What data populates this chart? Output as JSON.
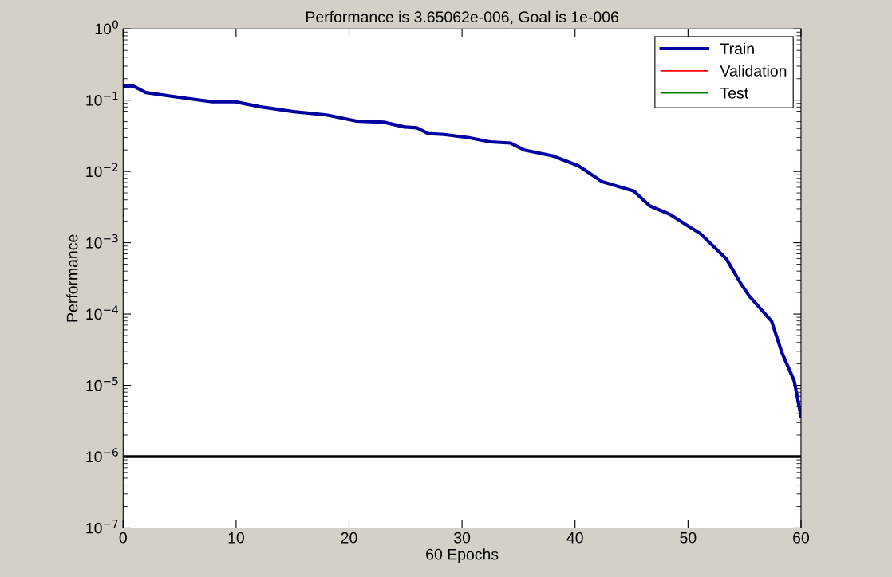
{
  "chart_data": {
    "type": "line",
    "title": "Performance is 3.65062e-006, Goal is 1e-006",
    "xlabel": "60 Epochs",
    "ylabel": "Performance",
    "log": "y",
    "legend": "top right",
    "grid": false,
    "xlim": [
      0,
      60
    ],
    "xticks": [
      0,
      10,
      20,
      30,
      40,
      50,
      60
    ],
    "ylim": [
      1e-07,
      1
    ],
    "yticks": [
      {
        "value": 1e-07,
        "label": "10$^{−7}$"
      },
      {
        "value": 1e-06,
        "label": "10$^{−6}$"
      },
      {
        "value": 1e-05,
        "label": "10$^{−5}$"
      },
      {
        "value": 0.0001,
        "label": "10$^{−4}$"
      },
      {
        "value": 0.001,
        "label": "10$^{−3}$"
      },
      {
        "value": 0.01,
        "label": "10$^{−2}$"
      },
      {
        "value": 0.1,
        "label": "10$^{−1}$"
      },
      {
        "value": 1,
        "label": "10$^{0}$"
      }
    ],
    "series": [
      {
        "name": "Train",
        "color": "#0000a0",
        "x": [
          0,
          0.9,
          2.0,
          4.9,
          7.9,
          9.9,
          12.1,
          15.1,
          18.0,
          20.6,
          23.1,
          24.9,
          26.0,
          27.0,
          28.4,
          30.5,
          32.5,
          34.3,
          35.5,
          38.0,
          40.3,
          42.4,
          45.2,
          46.6,
          48.4,
          49.8,
          51.1,
          53.4,
          54.6,
          55.4,
          57.4,
          58.3,
          59.4,
          60
        ],
        "values": [
          0.158,
          0.158,
          0.128,
          0.11,
          0.095,
          0.095,
          0.081,
          0.069,
          0.062,
          0.051,
          0.049,
          0.042,
          0.041,
          0.034,
          0.033,
          0.03,
          0.026,
          0.025,
          0.02,
          0.0166,
          0.012,
          0.0072,
          0.0053,
          0.0033,
          0.0025,
          0.0018,
          0.00134,
          0.00059,
          0.00028,
          0.00018,
          7.9e-05,
          2.9e-05,
          1.15e-05,
          3.65e-06
        ]
      },
      {
        "name": "Validation",
        "color": "#ff0000"
      },
      {
        "name": "Test",
        "color": "#008000"
      }
    ],
    "ref_lines": [
      {
        "axis": "y",
        "value": 1e-06,
        "color": "#000000",
        "line_style": "solid"
      }
    ]
  }
}
